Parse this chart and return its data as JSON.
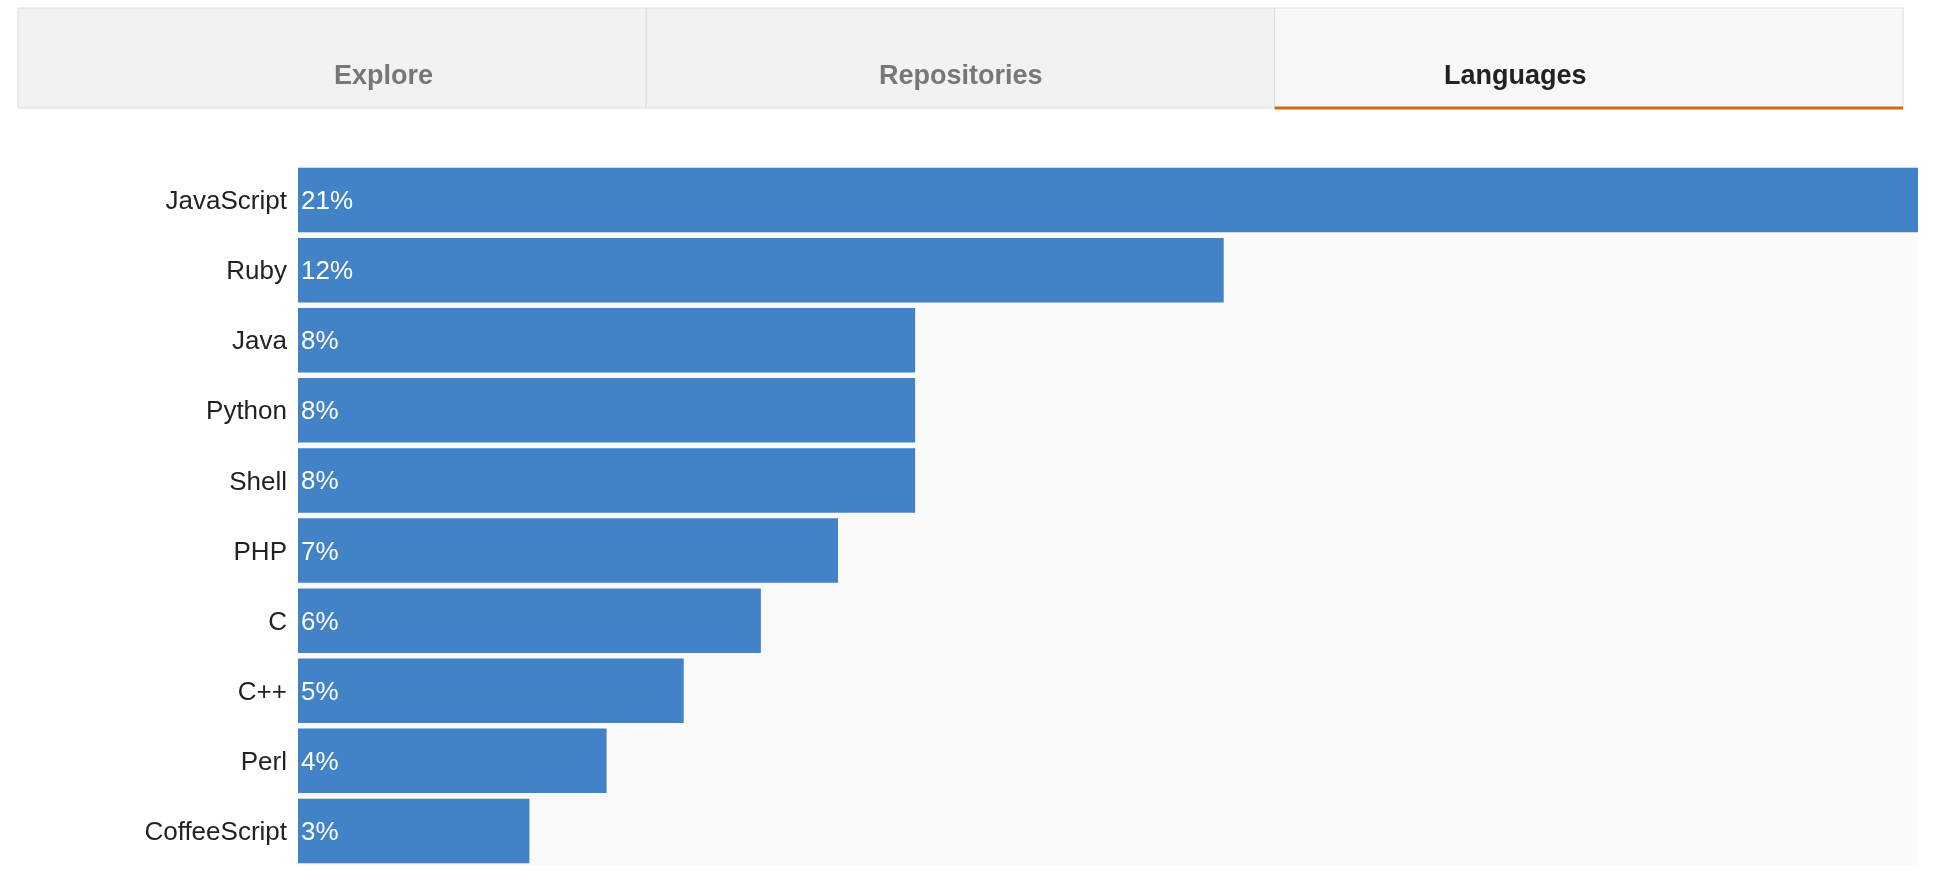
{
  "chart_data": {
    "type": "bar",
    "orientation": "horizontal",
    "categories": [
      "JavaScript",
      "Ruby",
      "Java",
      "Python",
      "Shell",
      "PHP",
      "C",
      "C++",
      "Perl",
      "CoffeeScript"
    ],
    "values": [
      21,
      12,
      8,
      8,
      8,
      7,
      6,
      5,
      4,
      3
    ],
    "value_labels": [
      "21%",
      "12%",
      "8%",
      "8%",
      "8%",
      "7%",
      "6%",
      "5%",
      "4%",
      "3%"
    ],
    "color": "#4282c6",
    "xlim": [
      0,
      21
    ],
    "tick_labels": "y",
    "legend": false,
    "annotations": [
      "Explore",
      "Repositories",
      "Languages"
    ]
  }
}
